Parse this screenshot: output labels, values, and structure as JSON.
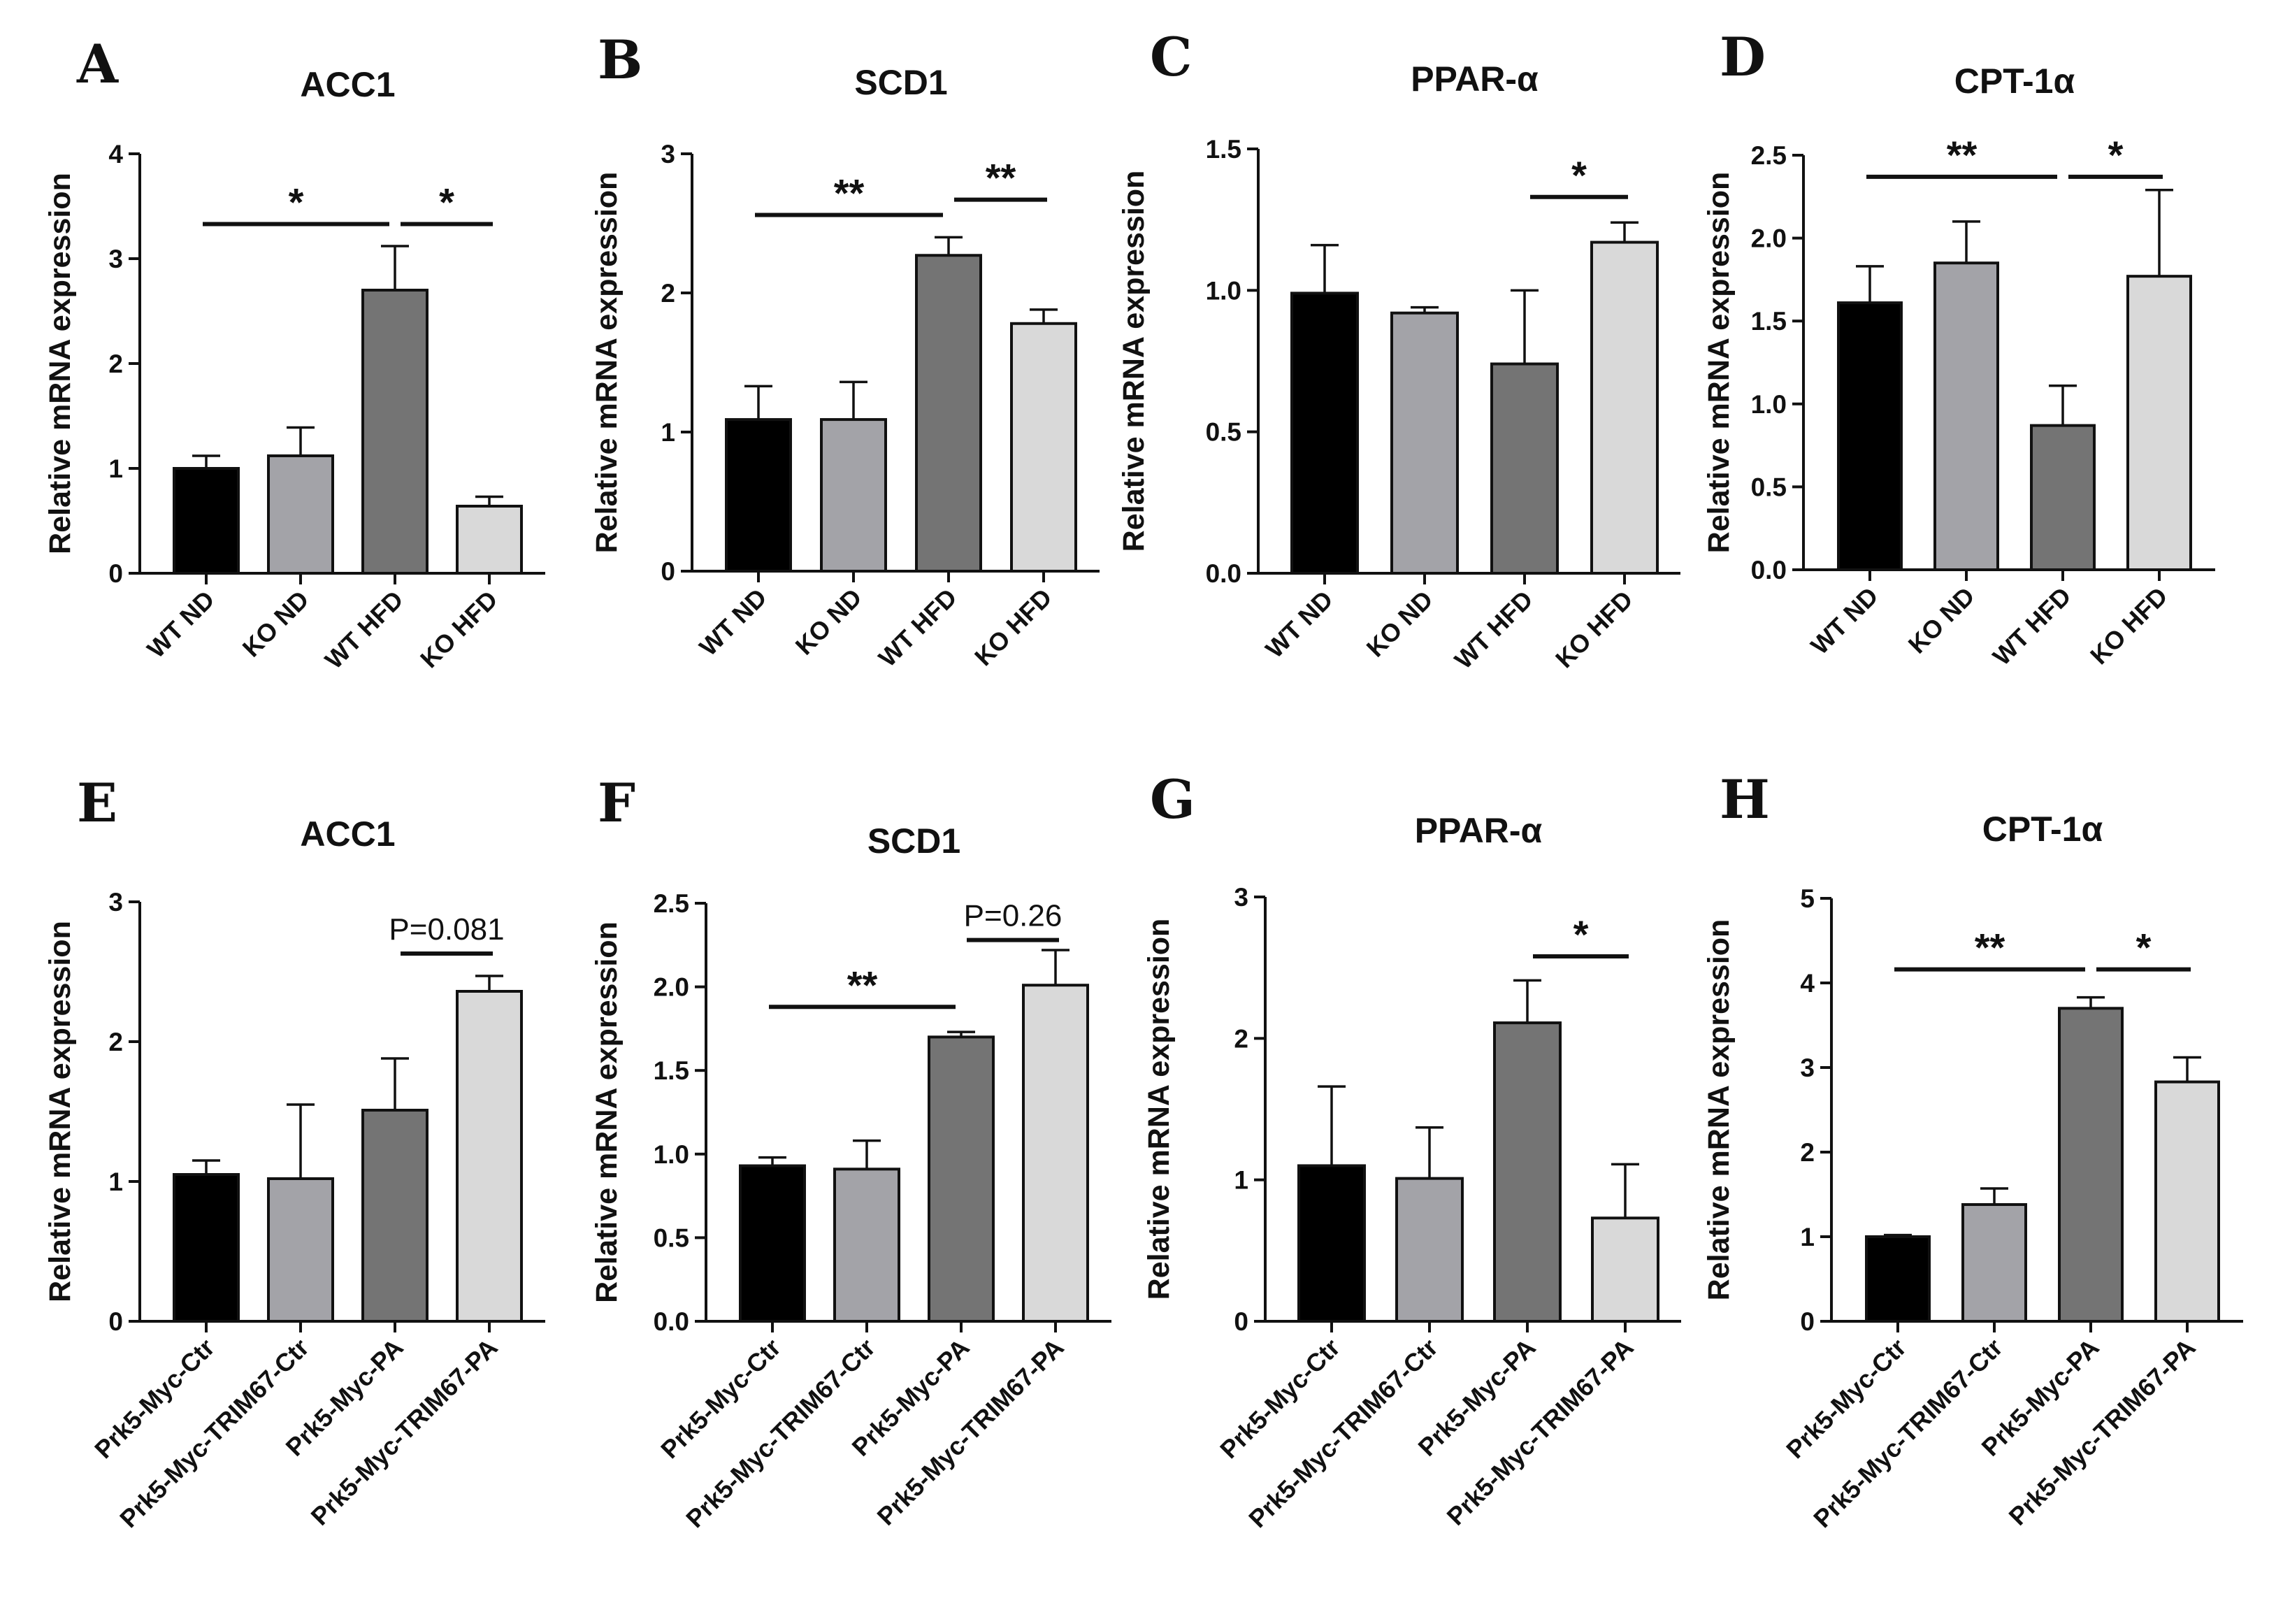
{
  "figure": {
    "group_colors": [
      "#000000",
      "#a3a3a8",
      "#747474",
      "#d9d9d9"
    ]
  },
  "chart_data": [
    {
      "panel": "A",
      "type": "bar",
      "title": "ACC1",
      "ylabel": "Relative mRNA expression",
      "categories": [
        "WT ND",
        "KO ND",
        "WT HFD",
        "KO HFD"
      ],
      "values": [
        1.0,
        1.12,
        2.7,
        0.64
      ],
      "errors": [
        0.12,
        0.27,
        0.42,
        0.09
      ],
      "ylim": [
        0,
        4
      ],
      "yticks": [
        "0",
        "1",
        "2",
        "3",
        "4"
      ],
      "significance": [
        {
          "from": 0,
          "to": 2,
          "label": "*",
          "level": 3.33
        },
        {
          "from": 2,
          "to": 3,
          "label": "*",
          "level": 3.33
        }
      ]
    },
    {
      "panel": "B",
      "type": "bar",
      "title": "SCD1",
      "ylabel": "Relative mRNA expression",
      "categories": [
        "WT ND",
        "KO ND",
        "WT HFD",
        "KO HFD"
      ],
      "values": [
        1.09,
        1.09,
        2.27,
        1.78
      ],
      "errors": [
        0.24,
        0.27,
        0.13,
        0.1
      ],
      "ylim": [
        0,
        3
      ],
      "yticks": [
        "0",
        "1",
        "2",
        "3"
      ],
      "significance": [
        {
          "from": 0,
          "to": 2,
          "label": "**",
          "level": 2.56
        },
        {
          "from": 2,
          "to": 3,
          "label": "**",
          "level": 2.67
        }
      ]
    },
    {
      "panel": "C",
      "type": "bar",
      "title": "PPAR-α",
      "ylabel": "Relative mRNA expression",
      "categories": [
        "WT ND",
        "KO ND",
        "WT HFD",
        "KO HFD"
      ],
      "values": [
        0.99,
        0.92,
        0.74,
        1.17
      ],
      "errors": [
        0.17,
        0.02,
        0.26,
        0.07
      ],
      "ylim": [
        0,
        1.5
      ],
      "yticks": [
        "0.0",
        "0.5",
        "1.0",
        "1.5"
      ],
      "significance": [
        {
          "from": 2,
          "to": 3,
          "label": "*",
          "level": 1.33
        }
      ]
    },
    {
      "panel": "D",
      "type": "bar",
      "title": "CPT-1α",
      "ylabel": "Relative mRNA expression",
      "categories": [
        "WT ND",
        "KO ND",
        "WT HFD",
        "KO HFD"
      ],
      "values": [
        1.61,
        1.85,
        0.87,
        1.77
      ],
      "errors": [
        0.22,
        0.25,
        0.24,
        0.52
      ],
      "ylim": [
        0,
        2.5
      ],
      "yticks": [
        "0.0",
        "0.5",
        "1.0",
        "1.5",
        "2.0",
        "2.5"
      ],
      "significance": [
        {
          "from": 0,
          "to": 2,
          "label": "**",
          "level": 2.37
        },
        {
          "from": 2,
          "to": 3,
          "label": "*",
          "level": 2.37
        }
      ]
    },
    {
      "panel": "E",
      "type": "bar",
      "title": "ACC1",
      "ylabel": "Relative mRNA expression",
      "categories": [
        "Prk5-Myc-Ctr",
        "Prk5-Myc-TRIM67-Ctr",
        "Prk5-Myc-PA",
        "Prk5-Myc-TRIM67-PA"
      ],
      "values": [
        1.05,
        1.02,
        1.51,
        2.36
      ],
      "errors": [
        0.1,
        0.53,
        0.37,
        0.11
      ],
      "ylim": [
        0,
        3
      ],
      "yticks": [
        "0",
        "1",
        "2",
        "3"
      ],
      "significance": [
        {
          "from": 2,
          "to": 3,
          "label": "P=0.081",
          "level": 2.63
        }
      ]
    },
    {
      "panel": "F",
      "type": "bar",
      "title": "SCD1",
      "ylabel": "Relative mRNA expression",
      "categories": [
        "Prk5-Myc-Ctr",
        "Prk5-Myc-TRIM67-Ctr",
        "Prk5-Myc-PA",
        "Prk5-Myc-TRIM67-PA"
      ],
      "values": [
        0.93,
        0.91,
        1.7,
        2.01
      ],
      "errors": [
        0.05,
        0.17,
        0.03,
        0.21
      ],
      "ylim": [
        0,
        2.5
      ],
      "yticks": [
        "0.0",
        "0.5",
        "1.0",
        "1.5",
        "2.0",
        "2.5"
      ],
      "significance": [
        {
          "from": 0,
          "to": 2,
          "label": "**",
          "level": 1.88
        },
        {
          "from": 2,
          "to": 3,
          "label": "P=0.26",
          "level": 2.28
        }
      ]
    },
    {
      "panel": "G",
      "type": "bar",
      "title": "PPAR-α",
      "ylabel": "Relative mRNA expression",
      "categories": [
        "Prk5-Myc-Ctr",
        "Prk5-Myc-TRIM67-Ctr",
        "Prk5-Myc-PA",
        "Prk5-Myc-TRIM67-PA"
      ],
      "values": [
        1.1,
        1.01,
        2.11,
        0.73
      ],
      "errors": [
        0.56,
        0.36,
        0.3,
        0.38
      ],
      "ylim": [
        0,
        3
      ],
      "yticks": [
        "0",
        "1",
        "2",
        "3"
      ],
      "significance": [
        {
          "from": 2,
          "to": 3,
          "label": "*",
          "level": 2.58
        }
      ]
    },
    {
      "panel": "H",
      "type": "bar",
      "title": "CPT-1α",
      "ylabel": "Relative mRNA expression",
      "categories": [
        "Prk5-Myc-Ctr",
        "Prk5-Myc-TRIM67-Ctr",
        "Prk5-Myc-PA",
        "Prk5-Myc-TRIM67-PA"
      ],
      "values": [
        1.0,
        1.38,
        3.7,
        2.83
      ],
      "errors": [
        0.02,
        0.19,
        0.13,
        0.29
      ],
      "ylim": [
        0,
        5
      ],
      "yticks": [
        "0",
        "1",
        "2",
        "3",
        "4",
        "5"
      ],
      "significance": [
        {
          "from": 0,
          "to": 2,
          "label": "**",
          "level": 4.16
        },
        {
          "from": 2,
          "to": 3,
          "label": "*",
          "level": 4.16
        }
      ]
    }
  ]
}
